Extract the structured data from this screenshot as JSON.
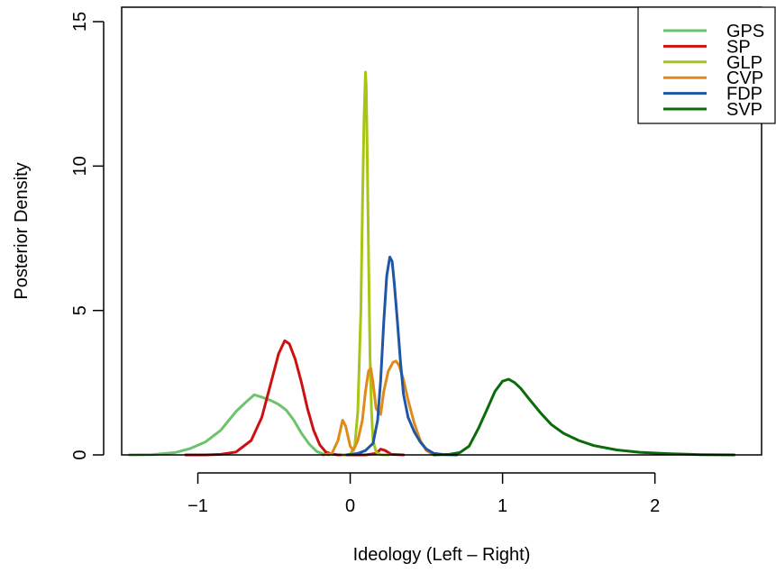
{
  "chart_data": {
    "type": "line",
    "title": "",
    "xlabel": "Ideology (Left – Right)",
    "ylabel": "Posterior Density",
    "xlim": [
      -1.5,
      2.7
    ],
    "ylim": [
      0,
      15.5
    ],
    "x_ticks": [
      -1,
      0,
      1,
      2
    ],
    "x_tick_labels": [
      "−1",
      "0",
      "1",
      "2"
    ],
    "y_ticks": [
      0,
      5,
      10,
      15
    ],
    "y_tick_labels": [
      "0",
      "5",
      "10",
      "15"
    ],
    "zero_line": true,
    "grid": false,
    "legend_position": "top-right",
    "series": [
      {
        "name": "GPS",
        "color": "#6cc36c",
        "x": [
          -1.45,
          -1.3,
          -1.15,
          -1.05,
          -0.95,
          -0.85,
          -0.75,
          -0.68,
          -0.63,
          -0.58,
          -0.52,
          -0.47,
          -0.42,
          -0.37,
          -0.32,
          -0.27,
          -0.22,
          -0.18,
          -0.14
        ],
        "y": [
          0.0,
          0.01,
          0.08,
          0.22,
          0.45,
          0.85,
          1.5,
          1.85,
          2.08,
          2.0,
          1.88,
          1.75,
          1.55,
          1.2,
          0.75,
          0.38,
          0.12,
          0.04,
          0.0
        ]
      },
      {
        "name": "SP",
        "color": "#cc1111",
        "x": [
          -1.08,
          -0.95,
          -0.85,
          -0.75,
          -0.65,
          -0.58,
          -0.52,
          -0.47,
          -0.43,
          -0.4,
          -0.36,
          -0.32,
          -0.28,
          -0.24,
          -0.2,
          -0.16,
          -0.12,
          -0.08,
          -0.03,
          0.0,
          0.1,
          0.17,
          0.2,
          0.23,
          0.27,
          0.35
        ],
        "y": [
          0.0,
          0.0,
          0.02,
          0.1,
          0.5,
          1.3,
          2.5,
          3.5,
          3.95,
          3.85,
          3.3,
          2.5,
          1.6,
          0.85,
          0.35,
          0.1,
          0.03,
          0.0,
          0.0,
          0.0,
          0.0,
          0.05,
          0.2,
          0.15,
          0.02,
          0.0
        ]
      },
      {
        "name": "GLP",
        "color": "#a8c414",
        "x": [
          -0.05,
          0.0,
          0.03,
          0.05,
          0.07,
          0.08,
          0.09,
          0.1,
          0.105,
          0.11,
          0.12,
          0.13,
          0.14,
          0.15,
          0.17,
          0.2,
          0.25
        ],
        "y": [
          0.0,
          0.02,
          0.3,
          1.5,
          5.0,
          8.5,
          11.5,
          13.25,
          12.8,
          11.0,
          7.0,
          3.5,
          1.5,
          0.5,
          0.1,
          0.01,
          0.0
        ]
      },
      {
        "name": "CVP",
        "color": "#e08a1a",
        "x": [
          -0.18,
          -0.12,
          -0.08,
          -0.05,
          -0.03,
          0.0,
          0.02,
          0.05,
          0.08,
          0.1,
          0.12,
          0.135,
          0.15,
          0.17,
          0.2,
          0.22,
          0.25,
          0.28,
          0.3,
          0.32,
          0.35,
          0.38,
          0.42,
          0.46,
          0.5,
          0.55
        ],
        "y": [
          0.0,
          0.05,
          0.5,
          1.2,
          1.0,
          0.3,
          0.15,
          0.5,
          1.2,
          2.2,
          2.9,
          3.0,
          2.5,
          1.6,
          1.4,
          2.2,
          2.9,
          3.2,
          3.25,
          3.1,
          2.6,
          1.9,
          1.1,
          0.5,
          0.15,
          0.0
        ]
      },
      {
        "name": "FDP",
        "color": "#1f56a6",
        "x": [
          -0.02,
          0.05,
          0.1,
          0.15,
          0.18,
          0.2,
          0.22,
          0.24,
          0.26,
          0.275,
          0.29,
          0.31,
          0.33,
          0.35,
          0.38,
          0.42,
          0.46,
          0.5,
          0.55,
          0.62,
          0.7
        ],
        "y": [
          0.0,
          0.05,
          0.15,
          0.4,
          1.2,
          2.6,
          4.6,
          6.2,
          6.85,
          6.7,
          5.9,
          4.6,
          3.2,
          2.1,
          1.3,
          0.8,
          0.45,
          0.2,
          0.05,
          0.01,
          0.0
        ]
      },
      {
        "name": "SVP",
        "color": "#0b6b0b",
        "x": [
          0.55,
          0.65,
          0.72,
          0.78,
          0.84,
          0.9,
          0.95,
          1.0,
          1.04,
          1.08,
          1.12,
          1.18,
          1.25,
          1.32,
          1.4,
          1.5,
          1.6,
          1.75,
          1.9,
          2.1,
          2.3,
          2.52
        ],
        "y": [
          0.0,
          0.02,
          0.08,
          0.3,
          0.9,
          1.6,
          2.2,
          2.55,
          2.62,
          2.5,
          2.3,
          1.9,
          1.45,
          1.05,
          0.75,
          0.5,
          0.32,
          0.17,
          0.09,
          0.04,
          0.01,
          0.0
        ]
      }
    ]
  }
}
